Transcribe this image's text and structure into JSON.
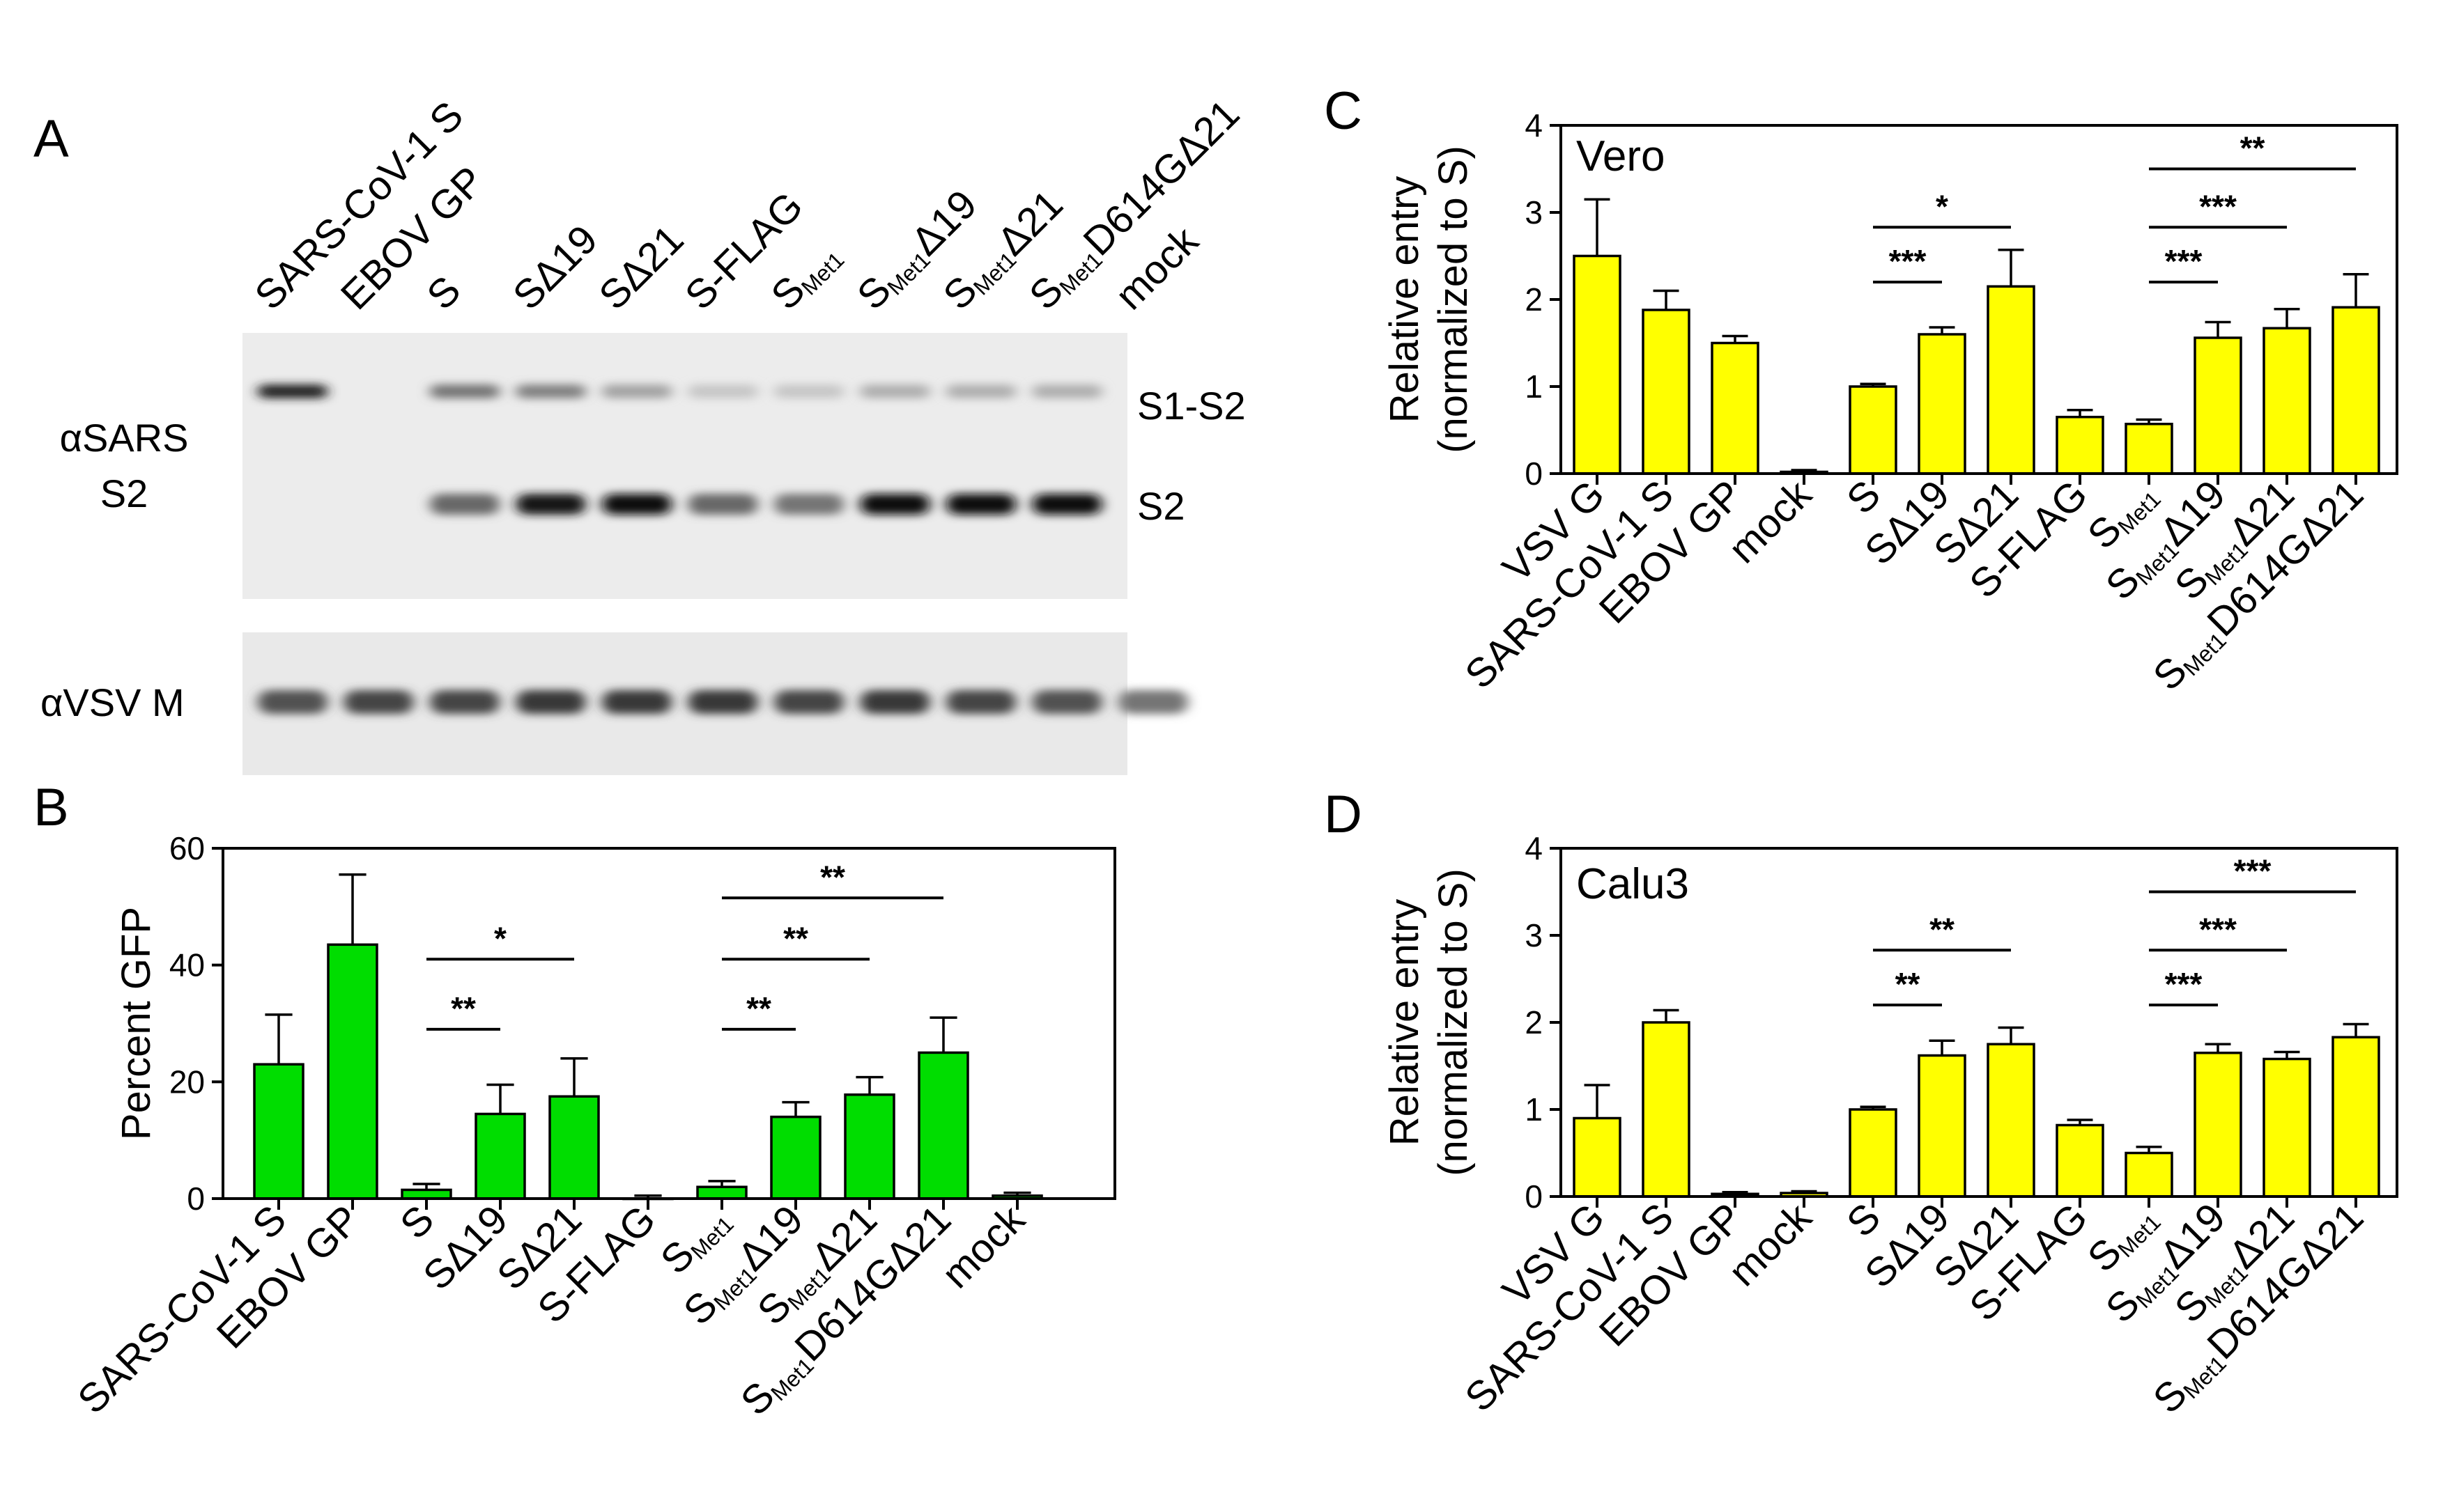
{
  "panels": {
    "a": {
      "letter": "A"
    },
    "b": {
      "letter": "B"
    },
    "c": {
      "letter": "C"
    },
    "d": {
      "letter": "D"
    }
  },
  "blot": {
    "lanes": [
      {
        "main": "SARS-CoV-1 S",
        "sub": "",
        "tail": ""
      },
      {
        "main": "EBOV GP",
        "sub": "",
        "tail": ""
      },
      {
        "main": "S",
        "sub": "",
        "tail": ""
      },
      {
        "main": "SΔ19",
        "sub": "",
        "tail": ""
      },
      {
        "main": "SΔ21",
        "sub": "",
        "tail": ""
      },
      {
        "main": "S-FLAG",
        "sub": "",
        "tail": ""
      },
      {
        "main": "S",
        "sub": "Met1",
        "tail": ""
      },
      {
        "main": "S",
        "sub": "Met1",
        "tail": "Δ19"
      },
      {
        "main": "S",
        "sub": "Met1",
        "tail": "Δ21"
      },
      {
        "main": "S",
        "sub": "Met1",
        "tail": "D614GΔ21"
      },
      {
        "main": "mock",
        "sub": "",
        "tail": ""
      }
    ],
    "top_left_label_1": "αSARS",
    "top_left_label_2": "S2",
    "bottom_left_label": "αVSV M",
    "band_labels": [
      "S1-S2",
      "S2"
    ],
    "s1s2_intensity": [
      0.9,
      0,
      0.55,
      0.5,
      0.35,
      0.2,
      0.2,
      0.3,
      0.3,
      0.3,
      0
    ],
    "s2_intensity": [
      0,
      0,
      0.6,
      0.95,
      1.0,
      0.6,
      0.55,
      1.0,
      1.0,
      1.0,
      0
    ],
    "m_intensity": [
      0.7,
      0.75,
      0.75,
      0.8,
      0.8,
      0.8,
      0.75,
      0.8,
      0.75,
      0.7,
      0.55
    ]
  },
  "chart_data": [
    {
      "panel": "B",
      "type": "bar",
      "color": "#00dd00",
      "categories": [
        {
          "main": "SARS-CoV-1 S",
          "sub": "",
          "tail": ""
        },
        {
          "main": "EBOV GP",
          "sub": "",
          "tail": ""
        },
        {
          "main": "S",
          "sub": "",
          "tail": ""
        },
        {
          "main": "SΔ19",
          "sub": "",
          "tail": ""
        },
        {
          "main": "SΔ21",
          "sub": "",
          "tail": ""
        },
        {
          "main": "S-FLAG",
          "sub": "",
          "tail": ""
        },
        {
          "main": "S",
          "sub": "Met1",
          "tail": ""
        },
        {
          "main": "S",
          "sub": "Met1",
          "tail": "Δ19"
        },
        {
          "main": "S",
          "sub": "Met1",
          "tail": "Δ21"
        },
        {
          "main": "S",
          "sub": "Met1",
          "tail": "D614GΔ21"
        },
        {
          "main": "mock",
          "sub": "",
          "tail": ""
        }
      ],
      "values": [
        23,
        43.5,
        1.5,
        14.5,
        17.5,
        0,
        2,
        14,
        17.8,
        25,
        0.5
      ],
      "errors": [
        8.5,
        12,
        1,
        5,
        6.5,
        0.5,
        1,
        2.5,
        3,
        6,
        0.5
      ],
      "ylabel": "Percent GFP",
      "yticks": [
        0,
        20,
        40,
        60
      ],
      "ylim": [
        0,
        60
      ],
      "inset_label": "",
      "significance": [
        {
          "from": 2,
          "to": 3,
          "label": "**",
          "level": 29
        },
        {
          "from": 2,
          "to": 4,
          "label": "*",
          "level": 41
        },
        {
          "from": 6,
          "to": 7,
          "label": "**",
          "level": 29
        },
        {
          "from": 6,
          "to": 8,
          "label": "**",
          "level": 41
        },
        {
          "from": 6,
          "to": 9,
          "label": "**",
          "level": 51.5
        }
      ]
    },
    {
      "panel": "C",
      "type": "bar",
      "color": "#ffff00",
      "categories": [
        {
          "main": "VSV G",
          "sub": "",
          "tail": ""
        },
        {
          "main": "SARS-CoV-1 S",
          "sub": "",
          "tail": ""
        },
        {
          "main": "EBOV GP",
          "sub": "",
          "tail": ""
        },
        {
          "main": "mock",
          "sub": "",
          "tail": ""
        },
        {
          "main": "S",
          "sub": "",
          "tail": ""
        },
        {
          "main": "SΔ19",
          "sub": "",
          "tail": ""
        },
        {
          "main": "SΔ21",
          "sub": "",
          "tail": ""
        },
        {
          "main": "S-FLAG",
          "sub": "",
          "tail": ""
        },
        {
          "main": "S",
          "sub": "Met1",
          "tail": ""
        },
        {
          "main": "S",
          "sub": "Met1",
          "tail": "Δ19"
        },
        {
          "main": "S",
          "sub": "Met1",
          "tail": "Δ21"
        },
        {
          "main": "S",
          "sub": "Met1",
          "tail": "D614GΔ21"
        }
      ],
      "values": [
        2.5,
        1.88,
        1.5,
        0.02,
        1.0,
        1.6,
        2.15,
        0.65,
        0.57,
        1.56,
        1.67,
        1.91
      ],
      "errors": [
        0.65,
        0.22,
        0.08,
        0.02,
        0.03,
        0.08,
        0.42,
        0.08,
        0.05,
        0.18,
        0.22,
        0.38
      ],
      "ylabel": "Relative entry",
      "ylabel2": "(normalized to S)",
      "yticks": [
        0,
        1,
        2,
        3,
        4
      ],
      "ylim": [
        0,
        4
      ],
      "inset_label": "Vero",
      "significance": [
        {
          "from": 4,
          "to": 5,
          "label": "***",
          "level": 2.2
        },
        {
          "from": 4,
          "to": 6,
          "label": "*",
          "level": 2.83
        },
        {
          "from": 8,
          "to": 9,
          "label": "***",
          "level": 2.2
        },
        {
          "from": 8,
          "to": 10,
          "label": "***",
          "level": 2.83
        },
        {
          "from": 8,
          "to": 11,
          "label": "**",
          "level": 3.5
        }
      ]
    },
    {
      "panel": "D",
      "type": "bar",
      "color": "#ffff00",
      "categories": [
        {
          "main": "VSV G",
          "sub": "",
          "tail": ""
        },
        {
          "main": "SARS-CoV-1 S",
          "sub": "",
          "tail": ""
        },
        {
          "main": "EBOV GP",
          "sub": "",
          "tail": ""
        },
        {
          "main": "mock",
          "sub": "",
          "tail": ""
        },
        {
          "main": "S",
          "sub": "",
          "tail": ""
        },
        {
          "main": "SΔ19",
          "sub": "",
          "tail": ""
        },
        {
          "main": "SΔ21",
          "sub": "",
          "tail": ""
        },
        {
          "main": "S-FLAG",
          "sub": "",
          "tail": ""
        },
        {
          "main": "S",
          "sub": "Met1",
          "tail": ""
        },
        {
          "main": "S",
          "sub": "Met1",
          "tail": "Δ19"
        },
        {
          "main": "S",
          "sub": "Met1",
          "tail": "Δ21"
        },
        {
          "main": "S",
          "sub": "Met1",
          "tail": "D614GΔ21"
        }
      ],
      "values": [
        0.9,
        2.0,
        0.03,
        0.04,
        1.0,
        1.62,
        1.75,
        0.82,
        0.5,
        1.65,
        1.58,
        1.83
      ],
      "errors": [
        0.38,
        0.14,
        0.02,
        0.02,
        0.03,
        0.17,
        0.19,
        0.06,
        0.07,
        0.1,
        0.08,
        0.15
      ],
      "ylabel": "Relative entry",
      "ylabel2": "(normalized to S)",
      "yticks": [
        0,
        1,
        2,
        3,
        4
      ],
      "ylim": [
        0,
        4
      ],
      "inset_label": "Calu3",
      "significance": [
        {
          "from": 4,
          "to": 5,
          "label": "**",
          "level": 2.2
        },
        {
          "from": 4,
          "to": 6,
          "label": "**",
          "level": 2.83
        },
        {
          "from": 8,
          "to": 9,
          "label": "***",
          "level": 2.2
        },
        {
          "from": 8,
          "to": 10,
          "label": "***",
          "level": 2.83
        },
        {
          "from": 8,
          "to": 11,
          "label": "***",
          "level": 3.5
        }
      ]
    }
  ]
}
